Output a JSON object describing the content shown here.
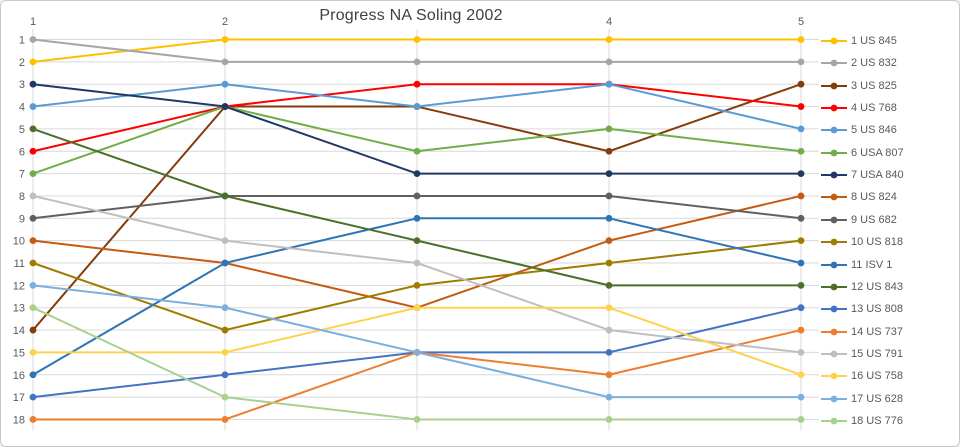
{
  "window": {
    "background": "#ffffff",
    "border_color": "#c9c9c9",
    "gridline_color": "#d9d9d9",
    "tick_color": "#595959",
    "title_color": "#404040"
  },
  "chart_data": {
    "type": "line",
    "subtype": "bump-chart-rank-progress",
    "title": "Progress NA Soling 2002",
    "xlabel": "",
    "ylabel": "",
    "x": [
      1,
      2,
      3,
      4,
      5
    ],
    "x_tick_labels": [
      "1",
      "2",
      "",
      "4",
      "5"
    ],
    "y_axis": {
      "min": 1,
      "max": 18,
      "inverted": true,
      "tick_labels": [
        "1",
        "2",
        "3",
        "4",
        "5",
        "6",
        "7",
        "8",
        "9",
        "10",
        "11",
        "12",
        "13",
        "14",
        "15",
        "16",
        "17",
        "18"
      ]
    },
    "grid": true,
    "legend_position": "right",
    "series": [
      {
        "name": "1 US 845",
        "color": "#FFC000",
        "values": [
          2,
          1,
          1,
          1,
          1
        ]
      },
      {
        "name": "2 US 832",
        "color": "#A6A6A6",
        "values": [
          1,
          2,
          2,
          2,
          2
        ]
      },
      {
        "name": "3 US 825",
        "color": "#843C0C",
        "values": [
          14,
          4,
          4,
          6,
          3
        ]
      },
      {
        "name": "4 US 768",
        "color": "#FF0000",
        "values": [
          6,
          4,
          3,
          3,
          4
        ]
      },
      {
        "name": "5 US 846",
        "color": "#5B9BD5",
        "values": [
          4,
          3,
          4,
          3,
          5
        ]
      },
      {
        "name": "6 USA 807",
        "color": "#70AD47",
        "values": [
          7,
          4,
          6,
          5,
          6
        ]
      },
      {
        "name": "7 USA 840",
        "color": "#203864",
        "values": [
          3,
          4,
          7,
          7,
          7
        ]
      },
      {
        "name": "8 US 824",
        "color": "#C55A11",
        "values": [
          10,
          11,
          13,
          10,
          8
        ]
      },
      {
        "name": "9 US 682",
        "color": "#606060",
        "values": [
          9,
          8,
          8,
          8,
          9
        ]
      },
      {
        "name": "10 US 818",
        "color": "#9E7C00",
        "values": [
          11,
          14,
          12,
          11,
          10
        ]
      },
      {
        "name": "11 ISV 1",
        "color": "#2E75B6",
        "values": [
          16,
          11,
          9,
          9,
          11
        ]
      },
      {
        "name": "12 US 843",
        "color": "#4A7029",
        "values": [
          5,
          8,
          10,
          12,
          12
        ]
      },
      {
        "name": "13 US 808",
        "color": "#4472C4",
        "values": [
          17,
          16,
          15,
          15,
          13
        ]
      },
      {
        "name": "14 US 737",
        "color": "#ED7D31",
        "values": [
          18,
          18,
          15,
          16,
          14
        ]
      },
      {
        "name": "15 US 791",
        "color": "#BFBFBF",
        "values": [
          8,
          10,
          11,
          14,
          15
        ]
      },
      {
        "name": "16 US 758",
        "color": "#FFD24D",
        "values": [
          15,
          15,
          13,
          13,
          16
        ]
      },
      {
        "name": "17 US 628",
        "color": "#7CAFDD",
        "values": [
          12,
          13,
          15,
          17,
          17
        ]
      },
      {
        "name": "18 US 776",
        "color": "#A9D18E",
        "values": [
          13,
          17,
          18,
          18,
          18
        ]
      }
    ]
  }
}
